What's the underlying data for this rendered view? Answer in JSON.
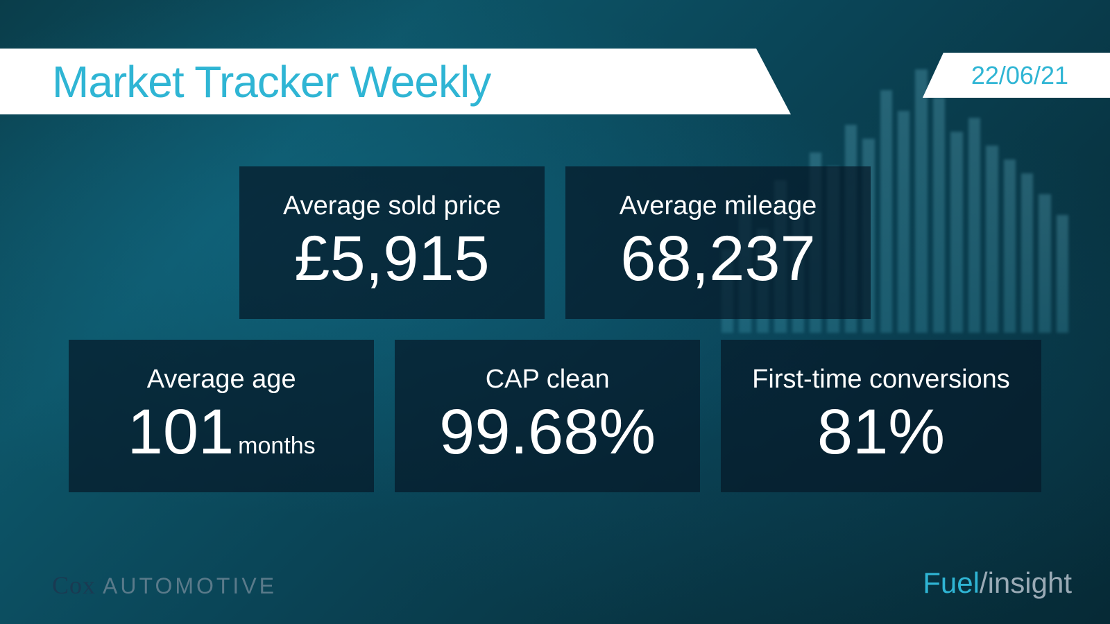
{
  "header": {
    "title": "Market Tracker Weekly",
    "date": "22/06/21",
    "title_color": "#2fb5d4",
    "date_color": "#2fb5d4"
  },
  "metrics": {
    "row1": [
      {
        "label": "Average sold price",
        "value": "£5,915",
        "suffix": ""
      },
      {
        "label": "Average mileage",
        "value": "68,237",
        "suffix": ""
      }
    ],
    "row2": [
      {
        "label": "Average age",
        "value": "101",
        "suffix": "months"
      },
      {
        "label": "CAP clean",
        "value": "99.68%",
        "suffix": ""
      },
      {
        "label": "First-time conversions",
        "value": "81%",
        "suffix": ""
      }
    ]
  },
  "card_style": {
    "background_color": "rgba(5, 25, 40, 0.72)",
    "label_fontsize": 38,
    "value_fontsize": 92,
    "text_color": "#ffffff"
  },
  "footer": {
    "left_logo_primary": "Cox",
    "left_logo_secondary": "AUTOMOTIVE",
    "right_logo_part1": "Fuel",
    "right_logo_separator": "/",
    "right_logo_part2": "insight"
  },
  "colors": {
    "accent": "#2fb5d4",
    "background_dark": "#0a3d4a",
    "footer_gray": "#9aaab5"
  },
  "decoration_bars": [
    120,
    180,
    150,
    220,
    190,
    260,
    240,
    300,
    280,
    350,
    320,
    380,
    340,
    290,
    310,
    270,
    250,
    230,
    200,
    170
  ]
}
